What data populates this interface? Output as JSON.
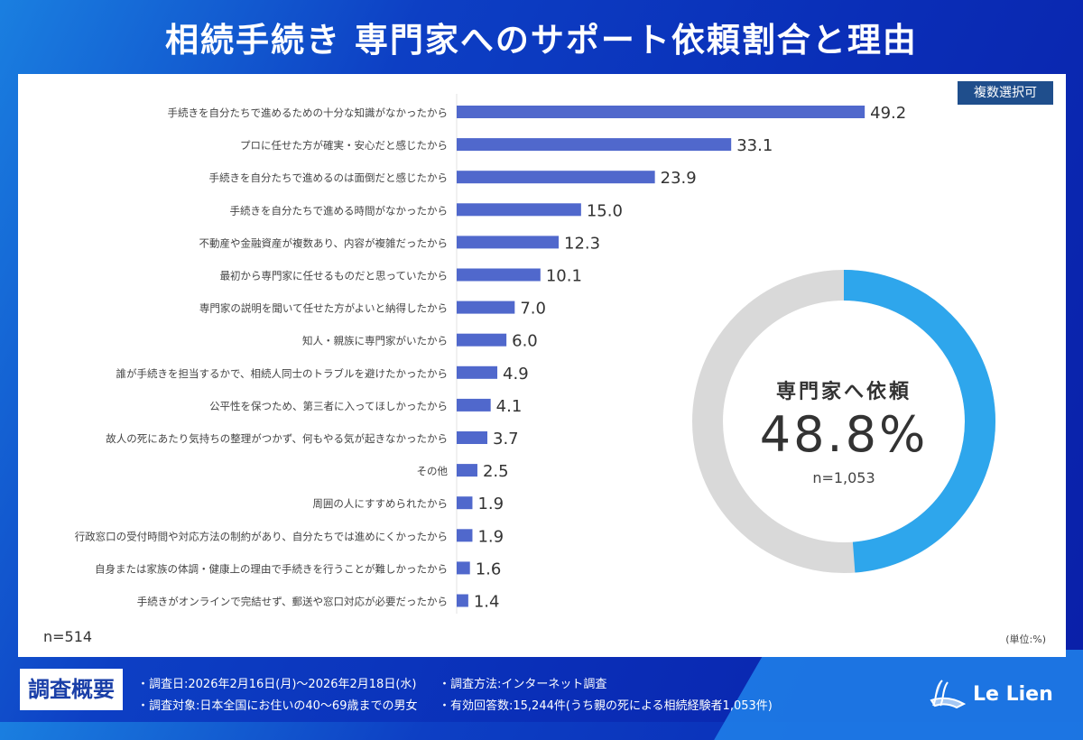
{
  "title": "相続手続き 専門家へのサポート依頼割合と理由",
  "badge": "複数選択可",
  "sample_left": "n=514",
  "unit": "(単位:%)",
  "footer": {
    "label": "調査概要",
    "items": [
      "・調査日:2026年2月16日(月)～2026年2月18日(水)",
      "・調査方法:インターネット調査",
      "・調査対象:日本全国にお住いの40～69歳までの男女",
      "・有効回答数:15,244件(うち親の死による相続経験者1,053件)"
    ],
    "brand": "Le Lien"
  },
  "colors": {
    "bar": "#5068cc",
    "donut_fill": "#2ea6ec",
    "donut_rest": "#d9d9d9",
    "badge": "#1f4e8c"
  },
  "chart_data": [
    {
      "type": "bar",
      "orientation": "horizontal",
      "unit": "%",
      "categories": [
        "手続きを自分たちで進めるための十分な知識がなかったから",
        "プロに任せた方が確実・安心だと感じたから",
        "手続きを自分たちで進めるのは面倒だと感じたから",
        "手続きを自分たちで進める時間がなかったから",
        "不動産や金融資産が複数あり、内容が複雑だったから",
        "最初から専門家に任せるものだと思っていたから",
        "専門家の説明を聞いて任せた方がよいと納得したから",
        "知人・親族に専門家がいたから",
        "誰が手続きを担当するかで、相続人同士のトラブルを避けたかったから",
        "公平性を保つため、第三者に入ってほしかったから",
        "故人の死にあたり気持ちの整理がつかず、何もやる気が起きなかったから",
        "その他",
        "周囲の人にすすめられたから",
        "行政窓口の受付時間や対応方法の制約があり、自分たちでは進めにくかったから",
        "自身または家族の体調・健康上の理由で手続きを行うことが難しかったから",
        "手続きがオンラインで完結せず、郵送や窓口対応が必要だったから"
      ],
      "values": [
        49.2,
        33.1,
        23.9,
        15.0,
        12.3,
        10.1,
        7.0,
        6.0,
        4.9,
        4.1,
        3.7,
        2.5,
        1.9,
        1.9,
        1.6,
        1.4
      ],
      "labels": [
        "49.2",
        "33.1",
        "23.9",
        "15.0",
        "12.3",
        "10.1",
        "7.0",
        "6.0",
        "4.9",
        "4.1",
        "3.7",
        "2.5",
        "1.9",
        "1.9",
        "1.6",
        "1.4"
      ],
      "n": "n=514"
    },
    {
      "type": "pie",
      "variant": "donut",
      "title": "専門家へ依頼",
      "value": 48.8,
      "value_label": "48.8%",
      "n": "n=1,053"
    }
  ]
}
